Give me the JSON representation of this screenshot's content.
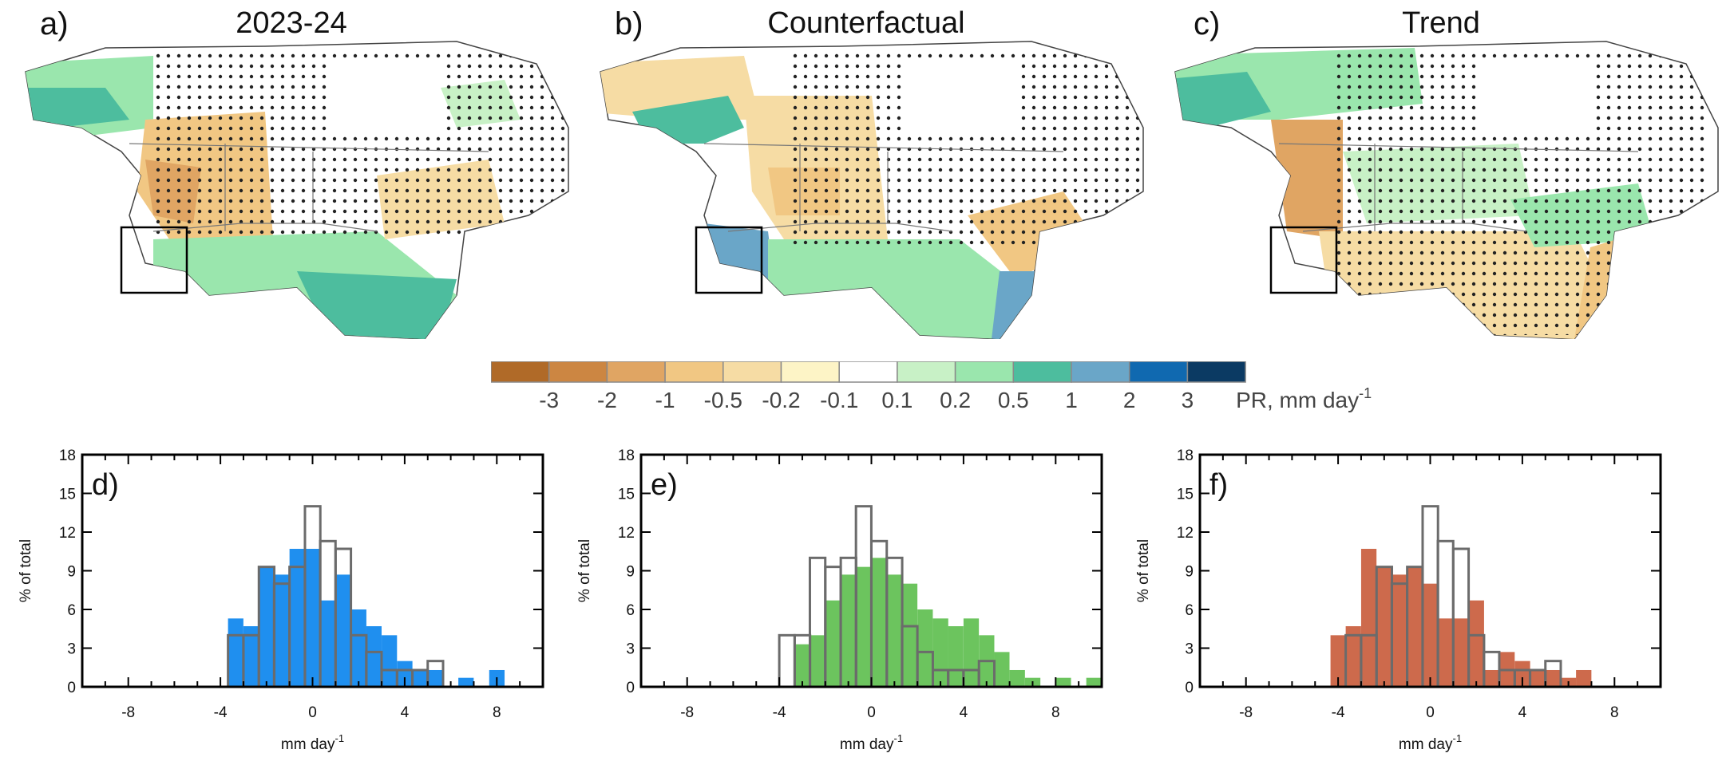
{
  "maps": [
    {
      "panel": "a)",
      "title": "2023-24"
    },
    {
      "panel": "b)",
      "title": "Counterfactual"
    },
    {
      "panel": "c)",
      "title": "Trend"
    }
  ],
  "colorbar": {
    "label_main": "PR, mm day",
    "label_sup": "-1",
    "tick_labels": [
      "-3",
      "-2",
      "-1",
      "-0.5",
      "-0.2",
      "-0.1",
      "0.1",
      "0.2",
      "0.5",
      "1",
      "2",
      "3"
    ],
    "colors": [
      "#b06a28",
      "#cc8642",
      "#e0a563",
      "#f1c783",
      "#f6dca4",
      "#fdf4c6",
      "#ffffff",
      "#c8f1c6",
      "#9ae6ad",
      "#4dbd9e",
      "#6aa6c8",
      "#1069b0",
      "#0b3a63"
    ]
  },
  "chart_data": [
    {
      "type": "histogram",
      "panel": "d)",
      "xlabel": "mm day",
      "xlabel_sup": "-1",
      "ylabel": "% of total",
      "xlim": [
        -10,
        10
      ],
      "ylim": [
        0,
        18
      ],
      "xticks": [
        -8,
        -4,
        0,
        4,
        8
      ],
      "yticks": [
        0,
        3,
        6,
        9,
        12,
        15,
        18
      ],
      "bin_width": 0.667,
      "fill_color": "#1f8fef",
      "outline_color": "#6b6b6b",
      "filled_bins": {
        "left_edges": [
          -3.67,
          -3.0,
          -2.33,
          -1.67,
          -1.0,
          -0.33,
          0.33,
          1.0,
          1.67,
          2.33,
          3.0,
          3.67,
          4.33,
          5.0,
          5.67,
          6.33,
          7.0,
          7.67
        ],
        "values": [
          5.3,
          4.7,
          9.3,
          8.7,
          10.7,
          10.7,
          6.7,
          8.7,
          6.0,
          4.7,
          4.0,
          2.0,
          1.3,
          1.3,
          0,
          0.7,
          0,
          1.3
        ]
      },
      "outline_bins": {
        "left_edges": [
          -3.67,
          -3.0,
          -2.33,
          -1.67,
          -1.0,
          -0.33,
          0.33,
          1.0,
          1.67,
          2.33,
          3.0,
          3.67,
          4.33,
          5.0
        ],
        "values": [
          4.0,
          4.0,
          9.3,
          8.0,
          9.3,
          14.0,
          11.3,
          10.7,
          4.0,
          2.7,
          1.3,
          1.3,
          1.3,
          2.0
        ]
      }
    },
    {
      "type": "histogram",
      "panel": "e)",
      "xlabel": "mm day",
      "xlabel_sup": "-1",
      "ylabel": "% of total",
      "xlim": [
        -10,
        10
      ],
      "ylim": [
        0,
        18
      ],
      "xticks": [
        -8,
        -4,
        0,
        4,
        8
      ],
      "yticks": [
        0,
        3,
        6,
        9,
        12,
        15,
        18
      ],
      "bin_width": 0.667,
      "fill_color": "#6cc45e",
      "outline_color": "#6b6b6b",
      "filled_bins": {
        "left_edges": [
          -3.33,
          -2.67,
          -2.0,
          -1.33,
          -0.67,
          0.0,
          0.67,
          1.33,
          2.0,
          2.67,
          3.33,
          4.0,
          4.67,
          5.33,
          6.0,
          6.67,
          7.33,
          8.0,
          8.67,
          9.33
        ],
        "values": [
          3.3,
          4.0,
          6.7,
          8.7,
          9.3,
          10.0,
          8.7,
          8.0,
          6.0,
          5.3,
          4.7,
          5.3,
          4.0,
          2.7,
          1.3,
          0.7,
          0,
          0.7,
          0,
          0.7
        ]
      },
      "outline_bins": {
        "left_edges": [
          -4.0,
          -3.33,
          -2.67,
          -2.0,
          -1.33,
          -0.67,
          0.0,
          0.67,
          1.33,
          2.0,
          2.67,
          3.33,
          4.0,
          4.67
        ],
        "values": [
          4.0,
          4.0,
          10.0,
          9.3,
          10.0,
          14.0,
          11.3,
          10.0,
          4.7,
          2.7,
          1.3,
          1.3,
          1.3,
          2.0
        ]
      }
    },
    {
      "type": "histogram",
      "panel": "f)",
      "xlabel": "mm day",
      "xlabel_sup": "-1",
      "ylabel": "% of total",
      "xlim": [
        -10,
        10
      ],
      "ylim": [
        0,
        18
      ],
      "xticks": [
        -8,
        -4,
        0,
        4,
        8
      ],
      "yticks": [
        0,
        3,
        6,
        9,
        12,
        15,
        18
      ],
      "bin_width": 0.667,
      "fill_color": "#cd6a4c",
      "outline_color": "#6b6b6b",
      "filled_bins": {
        "left_edges": [
          -4.33,
          -3.67,
          -3.0,
          -2.33,
          -1.67,
          -1.0,
          -0.33,
          0.33,
          1.0,
          1.67,
          2.33,
          3.0,
          3.67,
          4.33,
          5.0,
          5.67,
          6.33
        ],
        "values": [
          4.0,
          4.7,
          10.7,
          9.3,
          8.7,
          9.3,
          8.0,
          5.3,
          5.3,
          6.7,
          1.3,
          2.7,
          2.0,
          1.3,
          1.3,
          0.7,
          1.3
        ]
      },
      "outline_bins": {
        "left_edges": [
          -3.67,
          -3.0,
          -2.33,
          -1.67,
          -1.0,
          -0.33,
          0.33,
          1.0,
          1.67,
          2.33,
          3.0,
          3.67,
          4.33,
          5.0
        ],
        "values": [
          4.0,
          4.0,
          9.3,
          8.0,
          9.3,
          14.0,
          11.3,
          10.7,
          4.0,
          2.7,
          1.3,
          1.3,
          1.3,
          2.0
        ]
      }
    }
  ]
}
